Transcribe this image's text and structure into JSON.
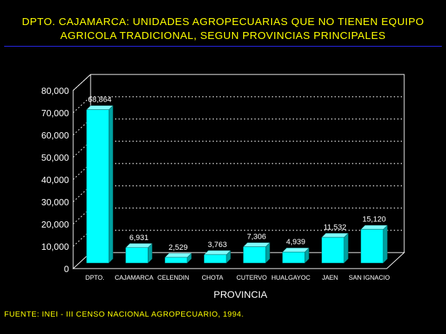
{
  "header": {
    "title_line1": "DPTO. CAJAMARCA: UNIDADES AGROPECUARIAS QUE NO TIENEN EQUIPO",
    "title_line2": "AGRICOLA TRADICIONAL, SEGUN PROVINCIAS PRINCIPALES"
  },
  "footer": {
    "source": "FUENTE: INEI - III CENSO NACIONAL AGROPECUARIO, 1994."
  },
  "colors": {
    "bar_front": "#00ffff",
    "bar_side": "#00a0a0",
    "bar_top": "#7ffcfc",
    "grid": "#ffffff",
    "axis_text": "#ffffff",
    "title": "#ffff00"
  },
  "chart_data": {
    "type": "bar",
    "title": "DPTO. CAJAMARCA: UNIDADES AGROPECUARIAS QUE NO TIENEN EQUIPO AGRICOLA TRADICIONAL, SEGUN PROVINCIAS PRINCIPALES",
    "xlabel": "PROVINCIA",
    "ylabel": "",
    "categories": [
      "DPTO.",
      "CAJAMARCA",
      "CELENDIN",
      "CHOTA",
      "CUTERVO",
      "HUALGAYOC",
      "JAEN",
      "SAN IGNACIO"
    ],
    "values": [
      68864,
      6931,
      2529,
      3763,
      7306,
      4939,
      11532,
      15120
    ],
    "value_labels": [
      "68,864",
      "6,931",
      "2,529",
      "3,763",
      "7,306",
      "4,939",
      "11,532",
      "15,120"
    ],
    "ylim": [
      0,
      80000
    ],
    "yticks": [
      0,
      10000,
      20000,
      30000,
      40000,
      50000,
      60000,
      70000,
      80000
    ],
    "ytick_labels": [
      "0",
      "10,000",
      "20,000",
      "30,000",
      "40,000",
      "50,000",
      "60,000",
      "70,000",
      "80,000"
    ],
    "grid": true,
    "legend": "none",
    "style": "3d"
  }
}
